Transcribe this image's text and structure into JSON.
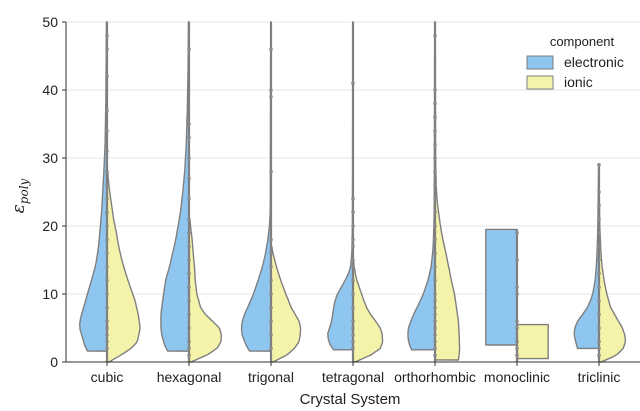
{
  "chart_data": {
    "type": "violin",
    "xlabel": "Crystal System",
    "ylabel_base": "ε",
    "ylabel_sub": "poly",
    "ylim": [
      0,
      50
    ],
    "yticks": [
      "0",
      "10",
      "20",
      "30",
      "40",
      "50"
    ],
    "grid": "horizontal",
    "legend": {
      "title": "component",
      "position": "top-right",
      "entries": [
        {
          "label": "electronic",
          "color": "#8ec6f0"
        },
        {
          "label": "ionic",
          "color": "#f5f2a9"
        }
      ]
    },
    "categories": [
      "cubic",
      "hexagonal",
      "trigonal",
      "tetragonal",
      "orthorhombic",
      "monoclinic",
      "triclinic"
    ],
    "violins": [
      {
        "electronic": {
          "min": 1.6,
          "max": 50,
          "profile": [
            [
              1.6,
              0.5
            ],
            [
              2,
              0.55
            ],
            [
              3,
              0.6
            ],
            [
              4,
              0.65
            ],
            [
              5,
              0.7
            ],
            [
              6,
              0.7
            ],
            [
              7,
              0.65
            ],
            [
              8,
              0.6
            ],
            [
              10,
              0.5
            ],
            [
              12,
              0.4
            ],
            [
              14,
              0.3
            ],
            [
              16,
              0.24
            ],
            [
              18,
              0.2
            ],
            [
              20,
              0.17
            ],
            [
              22,
              0.14
            ],
            [
              25,
              0.11
            ],
            [
              28,
              0.08
            ],
            [
              32,
              0.05
            ],
            [
              38,
              0.03
            ],
            [
              45,
              0.02
            ],
            [
              50,
              0.015
            ]
          ]
        },
        "ionic": {
          "min": 0,
          "max": 28,
          "profile": [
            [
              0,
              0.05
            ],
            [
              1,
              0.35
            ],
            [
              2,
              0.62
            ],
            [
              3,
              0.78
            ],
            [
              5,
              0.85
            ],
            [
              7,
              0.8
            ],
            [
              9,
              0.72
            ],
            [
              11,
              0.6
            ],
            [
              13,
              0.48
            ],
            [
              15,
              0.38
            ],
            [
              17,
              0.3
            ],
            [
              19,
              0.24
            ],
            [
              21,
              0.17
            ],
            [
              23,
              0.12
            ],
            [
              25,
              0.07
            ],
            [
              27,
              0.03
            ],
            [
              28,
              0.02
            ]
          ]
        },
        "points": [
          2,
          3,
          4,
          5,
          6,
          8,
          10,
          12,
          14,
          16,
          18,
          20,
          22,
          24,
          26,
          28,
          31,
          34,
          37,
          42,
          46,
          48
        ]
      },
      {
        "electronic": {
          "min": 1.6,
          "max": 50,
          "profile": [
            [
              1.6,
              0.55
            ],
            [
              2,
              0.6
            ],
            [
              3,
              0.65
            ],
            [
              4,
              0.7
            ],
            [
              5,
              0.72
            ],
            [
              6,
              0.72
            ],
            [
              7,
              0.72
            ],
            [
              8,
              0.7
            ],
            [
              10,
              0.65
            ],
            [
              12,
              0.6
            ],
            [
              14,
              0.5
            ],
            [
              16,
              0.42
            ],
            [
              18,
              0.34
            ],
            [
              20,
              0.28
            ],
            [
              22,
              0.22
            ],
            [
              25,
              0.16
            ],
            [
              28,
              0.11
            ],
            [
              32,
              0.07
            ],
            [
              38,
              0.04
            ],
            [
              45,
              0.02
            ],
            [
              50,
              0.015
            ]
          ]
        },
        "ionic": {
          "min": 0,
          "max": 21,
          "profile": [
            [
              0,
              0.05
            ],
            [
              1,
              0.45
            ],
            [
              2,
              0.72
            ],
            [
              3,
              0.82
            ],
            [
              4,
              0.83
            ],
            [
              5,
              0.78
            ],
            [
              6,
              0.6
            ],
            [
              7,
              0.42
            ],
            [
              8,
              0.3
            ],
            [
              10,
              0.2
            ],
            [
              12,
              0.16
            ],
            [
              14,
              0.14
            ],
            [
              16,
              0.11
            ],
            [
              18,
              0.08
            ],
            [
              20,
              0.04
            ],
            [
              21,
              0.02
            ]
          ]
        },
        "points": [
          1,
          2,
          3,
          5,
          7,
          9,
          11,
          13,
          15,
          17,
          19,
          21,
          24,
          27,
          30,
          33,
          35,
          46
        ]
      },
      {
        "electronic": {
          "min": 1.6,
          "max": 50,
          "profile": [
            [
              1.6,
              0.55
            ],
            [
              2,
              0.6
            ],
            [
              3,
              0.68
            ],
            [
              4,
              0.74
            ],
            [
              5,
              0.76
            ],
            [
              6,
              0.74
            ],
            [
              7,
              0.68
            ],
            [
              8,
              0.6
            ],
            [
              10,
              0.45
            ],
            [
              12,
              0.33
            ],
            [
              14,
              0.22
            ],
            [
              16,
              0.14
            ],
            [
              18,
              0.08
            ],
            [
              20,
              0.04
            ],
            [
              22,
              0.02
            ],
            [
              30,
              0.015
            ],
            [
              40,
              0.01
            ],
            [
              50,
              0.008
            ]
          ]
        },
        "ionic": {
          "min": 0,
          "max": 17,
          "profile": [
            [
              0,
              0.05
            ],
            [
              1,
              0.4
            ],
            [
              2,
              0.6
            ],
            [
              3,
              0.72
            ],
            [
              4,
              0.75
            ],
            [
              5,
              0.76
            ],
            [
              6,
              0.72
            ],
            [
              7,
              0.62
            ],
            [
              8,
              0.52
            ],
            [
              9,
              0.45
            ],
            [
              10,
              0.38
            ],
            [
              12,
              0.25
            ],
            [
              14,
              0.14
            ],
            [
              16,
              0.05
            ],
            [
              17,
              0.02
            ]
          ]
        },
        "points": [
          2,
          4,
          6,
          8,
          10,
          12,
          14,
          16,
          18,
          28,
          39,
          40,
          46
        ]
      },
      {
        "electronic": {
          "min": 1.8,
          "max": 50,
          "profile": [
            [
              1.8,
              0.5
            ],
            [
              2,
              0.55
            ],
            [
              3,
              0.62
            ],
            [
              4,
              0.66
            ],
            [
              5,
              0.6
            ],
            [
              6,
              0.55
            ],
            [
              7,
              0.52
            ],
            [
              8,
              0.5
            ],
            [
              9,
              0.46
            ],
            [
              10,
              0.4
            ],
            [
              11,
              0.3
            ],
            [
              12,
              0.2
            ],
            [
              13,
              0.12
            ],
            [
              14,
              0.06
            ],
            [
              16,
              0.03
            ],
            [
              20,
              0.015
            ],
            [
              30,
              0.01
            ],
            [
              40,
              0.008
            ],
            [
              50,
              0.006
            ]
          ]
        },
        "ionic": {
          "min": 0,
          "max": 15,
          "profile": [
            [
              0,
              0.05
            ],
            [
              1,
              0.45
            ],
            [
              2,
              0.7
            ],
            [
              3,
              0.76
            ],
            [
              4,
              0.75
            ],
            [
              5,
              0.7
            ],
            [
              6,
              0.58
            ],
            [
              7,
              0.45
            ],
            [
              8,
              0.35
            ],
            [
              9,
              0.28
            ],
            [
              10,
              0.22
            ],
            [
              11,
              0.16
            ],
            [
              12,
              0.1
            ],
            [
              13,
              0.06
            ],
            [
              14,
              0.03
            ],
            [
              15,
              0.015
            ]
          ]
        },
        "points": [
          2,
          3,
          4,
          5,
          6,
          8,
          10,
          12,
          14,
          15,
          17,
          18,
          20,
          22,
          24,
          41
        ]
      },
      {
        "electronic": {
          "min": 1.8,
          "max": 50,
          "profile": [
            [
              1.8,
              0.6
            ],
            [
              2,
              0.62
            ],
            [
              3,
              0.68
            ],
            [
              4,
              0.7
            ],
            [
              5,
              0.68
            ],
            [
              6,
              0.62
            ],
            [
              7,
              0.55
            ],
            [
              8,
              0.46
            ],
            [
              9,
              0.38
            ],
            [
              10,
              0.3
            ],
            [
              12,
              0.18
            ],
            [
              14,
              0.1
            ],
            [
              16,
              0.06
            ],
            [
              18,
              0.04
            ],
            [
              22,
              0.02
            ],
            [
              30,
              0.015
            ],
            [
              40,
              0.01
            ],
            [
              50,
              0.008
            ]
          ]
        },
        "ionic": {
          "min": 0.3,
          "max": 50,
          "profile": [
            [
              0.3,
              0.6
            ],
            [
              1,
              0.62
            ],
            [
              2,
              0.63
            ],
            [
              4,
              0.62
            ],
            [
              6,
              0.6
            ],
            [
              8,
              0.55
            ],
            [
              10,
              0.5
            ],
            [
              12,
              0.42
            ],
            [
              14,
              0.35
            ],
            [
              16,
              0.28
            ],
            [
              18,
              0.2
            ],
            [
              20,
              0.14
            ],
            [
              22,
              0.09
            ],
            [
              24,
              0.05
            ],
            [
              26,
              0.03
            ],
            [
              30,
              0.015
            ],
            [
              40,
              0.01
            ],
            [
              50,
              0.008
            ]
          ]
        },
        "points": [
          1,
          2,
          3,
          4,
          5,
          6,
          7,
          8,
          9,
          10,
          12,
          14,
          16,
          18,
          20,
          22,
          24,
          26,
          28,
          30,
          32,
          34,
          36,
          38,
          40,
          48
        ]
      },
      {
        "electronic": {
          "min": 2.5,
          "max": 19.5,
          "profile": [
            [
              2.5,
              0.8
            ],
            [
              19.5,
              0.8
            ]
          ]
        },
        "ionic": {
          "min": 0.5,
          "max": 5.5,
          "profile": [
            [
              0.5,
              0.8
            ],
            [
              5.5,
              0.8
            ]
          ]
        },
        "points": [
          1,
          2,
          3,
          5,
          6,
          10,
          11,
          15,
          19
        ]
      },
      {
        "electronic": {
          "min": 2,
          "max": 29,
          "profile": [
            [
              2,
              0.55
            ],
            [
              3,
              0.6
            ],
            [
              4,
              0.64
            ],
            [
              5,
              0.62
            ],
            [
              6,
              0.55
            ],
            [
              7,
              0.42
            ],
            [
              8,
              0.3
            ],
            [
              9,
              0.22
            ],
            [
              10,
              0.16
            ],
            [
              12,
              0.1
            ],
            [
              14,
              0.07
            ],
            [
              16,
              0.05
            ],
            [
              20,
              0.03
            ],
            [
              24,
              0.02
            ],
            [
              29,
              0.01
            ]
          ]
        },
        "ionic": {
          "min": 0,
          "max": 24,
          "profile": [
            [
              0,
              0.05
            ],
            [
              1,
              0.45
            ],
            [
              2,
              0.62
            ],
            [
              3,
              0.68
            ],
            [
              4,
              0.66
            ],
            [
              5,
              0.6
            ],
            [
              6,
              0.5
            ],
            [
              7,
              0.4
            ],
            [
              8,
              0.3
            ],
            [
              10,
              0.2
            ],
            [
              12,
              0.13
            ],
            [
              14,
              0.08
            ],
            [
              16,
              0.05
            ],
            [
              20,
              0.02
            ],
            [
              24,
              0.01
            ]
          ]
        },
        "points": [
          1,
          2,
          3,
          5,
          7,
          9,
          11,
          13,
          15,
          17,
          19,
          21,
          23,
          25,
          29
        ]
      }
    ]
  }
}
